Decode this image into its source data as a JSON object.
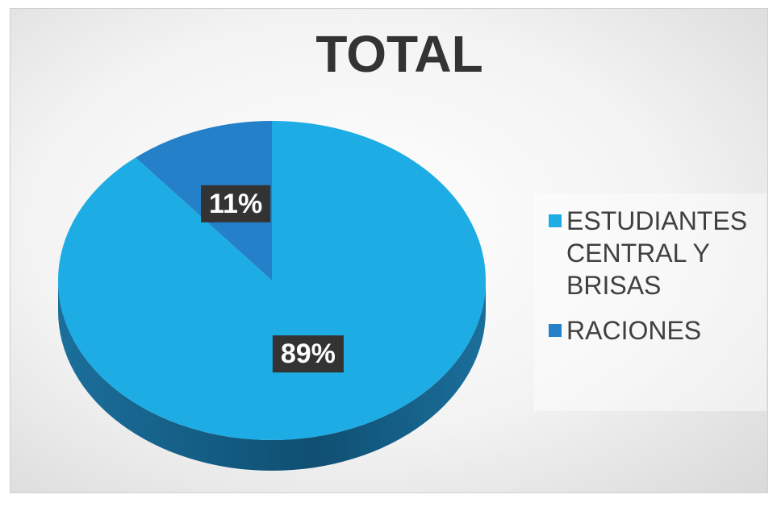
{
  "chart_data": {
    "type": "pie",
    "title": "TOTAL",
    "categories": [
      "ESTUDIANTES CENTRAL Y BRISAS",
      "RACIONES"
    ],
    "values": [
      89,
      11
    ],
    "value_labels": [
      "89%",
      "11%"
    ],
    "colors": [
      "#1eace4",
      "#2480c8"
    ],
    "legend": "right"
  }
}
